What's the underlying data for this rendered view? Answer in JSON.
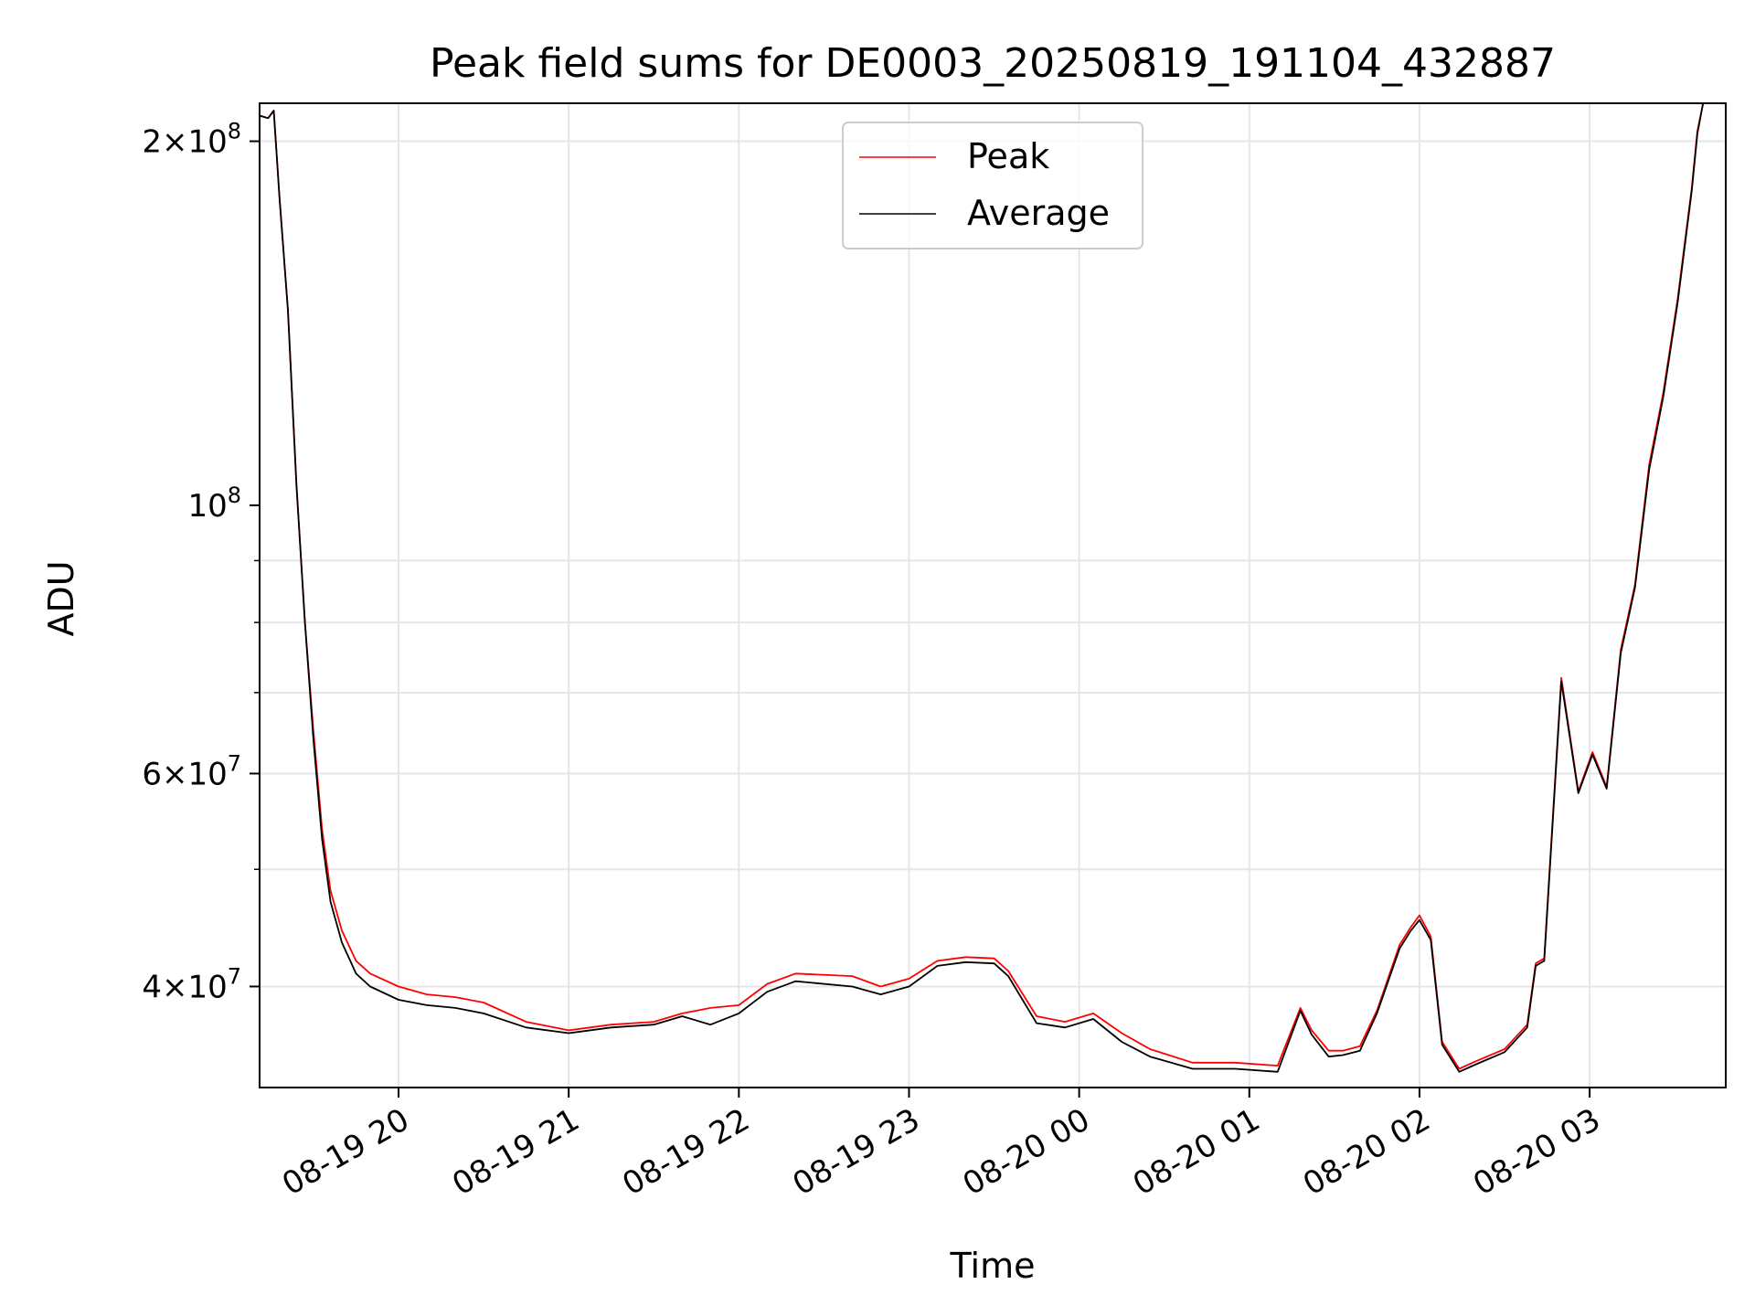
{
  "chart_data": {
    "type": "line",
    "title": "Peak field sums for DE0003_20250819_191104_432887",
    "xlabel": "Time",
    "ylabel": "ADU",
    "y_scale": "log",
    "ylim": [
      33000000,
      215000000
    ],
    "xlim": [
      "08-19 19:11",
      "08-20 03:48"
    ],
    "grid": true,
    "legend_placement": "top-center",
    "x_tick_labels": [
      "08-19 20",
      "08-19 21",
      "08-19 22",
      "08-19 23",
      "08-20 00",
      "08-20 01",
      "08-20 02",
      "08-20 03"
    ],
    "x_tick_values": [
      "08-19 20:00",
      "08-19 21:00",
      "08-19 22:00",
      "08-19 23:00",
      "08-20 00:00",
      "08-20 01:00",
      "08-20 02:00",
      "08-20 03:00"
    ],
    "y_ticks_major": [
      {
        "value": 40000000,
        "mantissa": "4",
        "exp": "7"
      },
      {
        "value": 60000000,
        "mantissa": "6",
        "exp": "7"
      },
      {
        "value": 100000000,
        "mantissa": "",
        "exp": "8"
      },
      {
        "value": 200000000,
        "mantissa": "2",
        "exp": "8"
      }
    ],
    "series": [
      {
        "name": "Peak",
        "color": "#ff0000",
        "points": [
          [
            "08-19 19:11",
            210000000
          ],
          [
            "08-19 19:14",
            209000000
          ],
          [
            "08-19 19:16",
            212000000
          ],
          [
            "08-19 19:18",
            180000000
          ],
          [
            "08-19 19:21",
            145000000
          ],
          [
            "08-19 19:24",
            104000000
          ],
          [
            "08-19 19:27",
            80000000
          ],
          [
            "08-19 19:30",
            65000000
          ],
          [
            "08-19 19:33",
            54000000
          ],
          [
            "08-19 19:36",
            48000000
          ],
          [
            "08-19 19:40",
            44500000
          ],
          [
            "08-19 19:45",
            42000000
          ],
          [
            "08-19 19:50",
            41000000
          ],
          [
            "08-19 20:00",
            40000000
          ],
          [
            "08-19 20:10",
            39400000
          ],
          [
            "08-19 20:20",
            39200000
          ],
          [
            "08-19 20:30",
            38800000
          ],
          [
            "08-19 20:45",
            37400000
          ],
          [
            "08-19 21:00",
            36800000
          ],
          [
            "08-19 21:15",
            37200000
          ],
          [
            "08-19 21:30",
            37400000
          ],
          [
            "08-19 21:40",
            38000000
          ],
          [
            "08-19 21:50",
            38400000
          ],
          [
            "08-19 22:00",
            38600000
          ],
          [
            "08-19 22:10",
            40200000
          ],
          [
            "08-19 22:20",
            41000000
          ],
          [
            "08-19 22:40",
            40800000
          ],
          [
            "08-19 22:50",
            40000000
          ],
          [
            "08-19 23:00",
            40600000
          ],
          [
            "08-19 23:10",
            42000000
          ],
          [
            "08-19 23:20",
            42300000
          ],
          [
            "08-19 23:30",
            42200000
          ],
          [
            "08-19 23:35",
            41200000
          ],
          [
            "08-19 23:45",
            37800000
          ],
          [
            "08-19 23:55",
            37400000
          ],
          [
            "08-20 00:05",
            38000000
          ],
          [
            "08-20 00:15",
            36600000
          ],
          [
            "08-20 00:25",
            35500000
          ],
          [
            "08-20 00:40",
            34600000
          ],
          [
            "08-20 00:55",
            34600000
          ],
          [
            "08-20 01:10",
            34400000
          ],
          [
            "08-20 01:18",
            38400000
          ],
          [
            "08-20 01:22",
            36800000
          ],
          [
            "08-20 01:28",
            35400000
          ],
          [
            "08-20 01:33",
            35400000
          ],
          [
            "08-20 01:39",
            35700000
          ],
          [
            "08-20 01:45",
            38200000
          ],
          [
            "08-20 01:53",
            43300000
          ],
          [
            "08-20 01:57",
            44800000
          ],
          [
            "08-20 02:00",
            45800000
          ],
          [
            "08-20 02:04",
            44000000
          ],
          [
            "08-20 02:08",
            36000000
          ],
          [
            "08-20 02:14",
            34200000
          ],
          [
            "08-20 02:20",
            34700000
          ],
          [
            "08-20 02:30",
            35500000
          ],
          [
            "08-20 02:38",
            37200000
          ],
          [
            "08-20 02:41",
            41800000
          ],
          [
            "08-20 02:44",
            42200000
          ],
          [
            "08-20 02:50",
            72000000
          ],
          [
            "08-20 02:56",
            58000000
          ],
          [
            "08-20 03:01",
            62500000
          ],
          [
            "08-20 03:06",
            58500000
          ],
          [
            "08-20 03:11",
            76000000
          ],
          [
            "08-20 03:16",
            86000000
          ],
          [
            "08-20 03:21",
            108000000
          ],
          [
            "08-20 03:26",
            124000000
          ],
          [
            "08-20 03:31",
            148000000
          ],
          [
            "08-20 03:36",
            183000000
          ],
          [
            "08-20 03:38",
            204000000
          ],
          [
            "08-20 03:40",
            215000000
          ]
        ]
      },
      {
        "name": "Average",
        "color": "#000000",
        "points": [
          [
            "08-19 19:11",
            210000000
          ],
          [
            "08-19 19:14",
            209000000
          ],
          [
            "08-19 19:16",
            212000000
          ],
          [
            "08-19 19:18",
            180000000
          ],
          [
            "08-19 19:21",
            145000000
          ],
          [
            "08-19 19:24",
            104000000
          ],
          [
            "08-19 19:27",
            80000000
          ],
          [
            "08-19 19:30",
            64000000
          ],
          [
            "08-19 19:33",
            53000000
          ],
          [
            "08-19 19:36",
            47000000
          ],
          [
            "08-19 19:40",
            43500000
          ],
          [
            "08-19 19:45",
            41000000
          ],
          [
            "08-19 19:50",
            40000000
          ],
          [
            "08-19 20:00",
            39000000
          ],
          [
            "08-19 20:10",
            38600000
          ],
          [
            "08-19 20:20",
            38400000
          ],
          [
            "08-19 20:30",
            38000000
          ],
          [
            "08-19 20:45",
            37000000
          ],
          [
            "08-19 21:00",
            36600000
          ],
          [
            "08-19 21:15",
            37000000
          ],
          [
            "08-19 21:30",
            37200000
          ],
          [
            "08-19 21:40",
            37800000
          ],
          [
            "08-19 21:50",
            37200000
          ],
          [
            "08-19 22:00",
            38000000
          ],
          [
            "08-19 22:10",
            39600000
          ],
          [
            "08-19 22:20",
            40400000
          ],
          [
            "08-19 22:40",
            40000000
          ],
          [
            "08-19 22:50",
            39400000
          ],
          [
            "08-19 23:00",
            40000000
          ],
          [
            "08-19 23:10",
            41600000
          ],
          [
            "08-19 23:20",
            41900000
          ],
          [
            "08-19 23:30",
            41800000
          ],
          [
            "08-19 23:35",
            40800000
          ],
          [
            "08-19 23:45",
            37300000
          ],
          [
            "08-19 23:55",
            37000000
          ],
          [
            "08-20 00:05",
            37600000
          ],
          [
            "08-20 00:15",
            36000000
          ],
          [
            "08-20 00:25",
            35000000
          ],
          [
            "08-20 00:40",
            34200000
          ],
          [
            "08-20 00:55",
            34200000
          ],
          [
            "08-20 01:10",
            34000000
          ],
          [
            "08-20 01:18",
            38200000
          ],
          [
            "08-20 01:22",
            36500000
          ],
          [
            "08-20 01:28",
            35000000
          ],
          [
            "08-20 01:33",
            35100000
          ],
          [
            "08-20 01:39",
            35400000
          ],
          [
            "08-20 01:45",
            38000000
          ],
          [
            "08-20 01:53",
            43000000
          ],
          [
            "08-20 01:57",
            44500000
          ],
          [
            "08-20 02:00",
            45400000
          ],
          [
            "08-20 02:04",
            43700000
          ],
          [
            "08-20 02:08",
            35800000
          ],
          [
            "08-20 02:14",
            34000000
          ],
          [
            "08-20 02:20",
            34500000
          ],
          [
            "08-20 02:30",
            35300000
          ],
          [
            "08-20 02:38",
            37000000
          ],
          [
            "08-20 02:41",
            41600000
          ],
          [
            "08-20 02:44",
            42000000
          ],
          [
            "08-20 02:50",
            71500000
          ],
          [
            "08-20 02:56",
            57800000
          ],
          [
            "08-20 03:01",
            62200000
          ],
          [
            "08-20 03:06",
            58300000
          ],
          [
            "08-20 03:11",
            75500000
          ],
          [
            "08-20 03:16",
            85500000
          ],
          [
            "08-20 03:21",
            107000000
          ],
          [
            "08-20 03:26",
            123000000
          ],
          [
            "08-20 03:31",
            147000000
          ],
          [
            "08-20 03:36",
            182000000
          ],
          [
            "08-20 03:38",
            203000000
          ],
          [
            "08-20 03:40",
            215000000
          ]
        ]
      }
    ]
  }
}
